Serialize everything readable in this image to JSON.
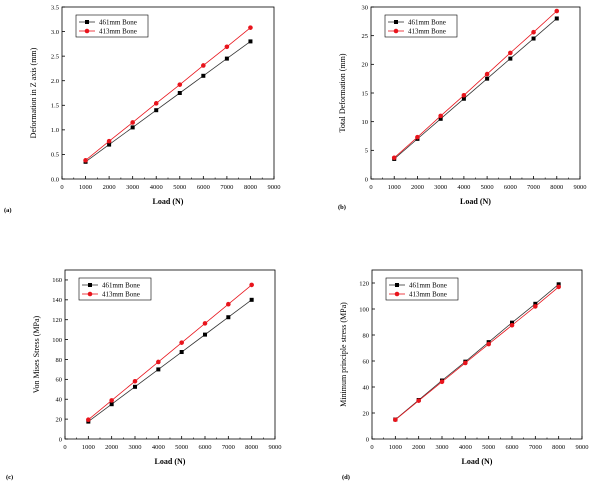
{
  "colors": {
    "series_461": "#000000",
    "series_413": "#e8141c",
    "line_461": "#333333",
    "line_413": "#e8141c"
  },
  "chart_data": [
    {
      "type": "line",
      "panel_label": "(a)",
      "xlabel": "Load (N)",
      "ylabel": "Deformation in Z axis (mm)",
      "xlim": [
        0,
        9000
      ],
      "ylim": [
        0,
        3.5
      ],
      "xticks": [
        "0",
        "1000",
        "2000",
        "3000",
        "4000",
        "5000",
        "6000",
        "7000",
        "8000",
        "9000"
      ],
      "yticks": [
        "0.0",
        "0.5",
        "1.0",
        "1.5",
        "2.0",
        "2.5",
        "3.0",
        "3.5"
      ],
      "x": [
        1000,
        2000,
        3000,
        4000,
        5000,
        6000,
        7000,
        8000
      ],
      "legend_position": "top-left",
      "series": [
        {
          "name": "461mm Bone",
          "marker": "square",
          "values": [
            0.35,
            0.7,
            1.05,
            1.4,
            1.75,
            2.1,
            2.45,
            2.8
          ]
        },
        {
          "name": "413mm Bone",
          "marker": "circle",
          "values": [
            0.38,
            0.77,
            1.15,
            1.54,
            1.92,
            2.31,
            2.69,
            3.08
          ]
        }
      ]
    },
    {
      "type": "line",
      "panel_label": "(b)",
      "xlabel": "Load (N)",
      "ylabel": "Total Deformation (mm)",
      "xlim": [
        0,
        9000
      ],
      "ylim": [
        0,
        30
      ],
      "xticks": [
        "0",
        "1000",
        "2000",
        "3000",
        "4000",
        "5000",
        "6000",
        "7000",
        "8000",
        "9000"
      ],
      "yticks": [
        "0",
        "5",
        "10",
        "15",
        "20",
        "25",
        "30"
      ],
      "x": [
        1000,
        2000,
        3000,
        4000,
        5000,
        6000,
        7000,
        8000
      ],
      "legend_position": "top-left",
      "series": [
        {
          "name": "461mm Bone",
          "marker": "square",
          "values": [
            3.5,
            7.0,
            10.5,
            14.0,
            17.5,
            21.0,
            24.5,
            28.0
          ]
        },
        {
          "name": "413mm Bone",
          "marker": "circle",
          "values": [
            3.7,
            7.3,
            11.0,
            14.6,
            18.3,
            22.0,
            25.6,
            29.3
          ]
        }
      ]
    },
    {
      "type": "line",
      "panel_label": "(c)",
      "xlabel": "Load (N)",
      "ylabel": "Von Mises Stress (MPa)",
      "xlim": [
        0,
        9000
      ],
      "ylim": [
        0,
        170
      ],
      "xticks": [
        "0",
        "1000",
        "2000",
        "3000",
        "4000",
        "5000",
        "6000",
        "7000",
        "8000",
        "9000"
      ],
      "yticks": [
        "0",
        "20",
        "40",
        "60",
        "80",
        "100",
        "120",
        "140",
        "160"
      ],
      "x": [
        1000,
        2000,
        3000,
        4000,
        5000,
        6000,
        7000,
        8000
      ],
      "legend_position": "top-left",
      "series": [
        {
          "name": "461mm Bone",
          "marker": "square",
          "values": [
            17.5,
            35,
            52.5,
            70,
            87.5,
            105,
            122.5,
            140
          ]
        },
        {
          "name": "413mm Bone",
          "marker": "circle",
          "values": [
            19.4,
            38.8,
            58.1,
            77.5,
            96.9,
            116.3,
            135.6,
            155
          ]
        }
      ]
    },
    {
      "type": "line",
      "panel_label": "(d)",
      "xlabel": "Load (N)",
      "ylabel": "Minimum principle stress (MPa)",
      "xlim": [
        0,
        9000
      ],
      "ylim": [
        0,
        130
      ],
      "xticks": [
        "0",
        "1000",
        "2000",
        "3000",
        "4000",
        "5000",
        "6000",
        "7000",
        "8000",
        "9000"
      ],
      "yticks": [
        "0",
        "20",
        "40",
        "60",
        "80",
        "100",
        "120"
      ],
      "x": [
        1000,
        2000,
        3000,
        4000,
        5000,
        6000,
        7000,
        8000
      ],
      "legend_position": "top-left",
      "series": [
        {
          "name": "461mm Bone",
          "marker": "square",
          "values": [
            15,
            30,
            45,
            59.5,
            74.5,
            89.5,
            104,
            119
          ]
        },
        {
          "name": "413mm Bone",
          "marker": "circle",
          "values": [
            14.8,
            29.5,
            44,
            58.5,
            73,
            87.5,
            102,
            117
          ]
        }
      ]
    }
  ]
}
